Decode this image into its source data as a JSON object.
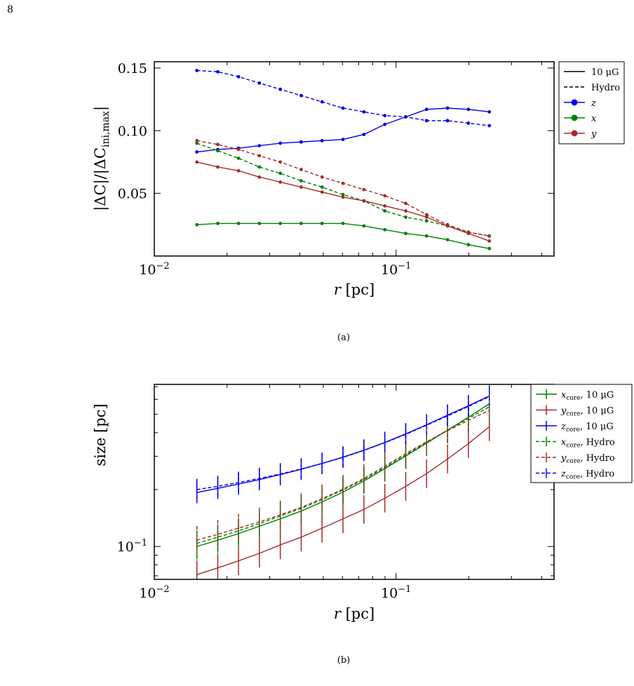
{
  "page_number": "8",
  "chart_data": [
    {
      "type": "line",
      "caption": "(a)",
      "xlabel": "r [pc]",
      "ylabel": "|ΔC|/|ΔC_ini,max|",
      "xscale": "log",
      "xlim": [
        0.01,
        0.45
      ],
      "ylim": [
        0.0,
        0.155
      ],
      "x_ticks": [
        0.01,
        0.1
      ],
      "x_tick_labels": [
        "10",
        "10"
      ],
      "x_tick_exponents": [
        "−2",
        "−1"
      ],
      "y_ticks": [
        0.05,
        0.1,
        0.15
      ],
      "y_tick_labels": [
        "0.05",
        "0.10",
        "0.15"
      ],
      "grid": false,
      "legend_position": "outside-right-top",
      "legend": [
        {
          "label": "10 μG",
          "style": "solid",
          "color": "#000000",
          "kind": "line"
        },
        {
          "label": "Hydro",
          "style": "dashed",
          "color": "#000000",
          "kind": "line"
        },
        {
          "label": "z",
          "style": "solid",
          "color": "#0000e6",
          "kind": "marker"
        },
        {
          "label": "x",
          "style": "solid",
          "color": "#008000",
          "kind": "marker"
        },
        {
          "label": "y",
          "style": "solid",
          "color": "#a52a2a",
          "kind": "marker"
        }
      ],
      "x": [
        0.015,
        0.0183,
        0.0223,
        0.0272,
        0.0332,
        0.0405,
        0.0494,
        0.0603,
        0.0736,
        0.0898,
        0.1096,
        0.1337,
        0.1632,
        0.1991,
        0.243
      ],
      "series": [
        {
          "color": "#0000e6",
          "style": "solid",
          "values": [
            0.083,
            0.085,
            0.086,
            0.088,
            0.09,
            0.091,
            0.092,
            0.093,
            0.097,
            0.105,
            0.111,
            0.117,
            0.118,
            0.117,
            0.115
          ]
        },
        {
          "color": "#0000e6",
          "style": "dashed",
          "values": [
            0.148,
            0.147,
            0.143,
            0.138,
            0.133,
            0.128,
            0.123,
            0.118,
            0.115,
            0.112,
            0.111,
            0.108,
            0.108,
            0.106,
            0.104
          ]
        },
        {
          "color": "#008000",
          "style": "solid",
          "values": [
            0.025,
            0.026,
            0.026,
            0.026,
            0.026,
            0.026,
            0.026,
            0.026,
            0.024,
            0.021,
            0.018,
            0.016,
            0.013,
            0.009,
            0.006
          ]
        },
        {
          "color": "#008000",
          "style": "dashed",
          "values": [
            0.09,
            0.084,
            0.078,
            0.071,
            0.066,
            0.06,
            0.055,
            0.049,
            0.044,
            0.036,
            0.031,
            0.028,
            0.024,
            0.019,
            0.016
          ]
        },
        {
          "color": "#a52a2a",
          "style": "solid",
          "values": [
            0.075,
            0.071,
            0.068,
            0.063,
            0.059,
            0.055,
            0.051,
            0.047,
            0.044,
            0.04,
            0.036,
            0.031,
            0.024,
            0.018,
            0.012
          ]
        },
        {
          "color": "#a52a2a",
          "style": "dashed",
          "values": [
            0.092,
            0.089,
            0.085,
            0.08,
            0.075,
            0.069,
            0.063,
            0.058,
            0.053,
            0.048,
            0.042,
            0.033,
            0.025,
            0.019,
            0.016
          ]
        }
      ]
    },
    {
      "type": "line",
      "caption": "(b)",
      "xlabel": "r [pc]",
      "ylabel": "size [pc]",
      "xscale": "log",
      "yscale": "log",
      "xlim": [
        0.01,
        0.45
      ],
      "ylim": [
        0.067,
        0.72
      ],
      "x_ticks": [
        0.01,
        0.1
      ],
      "x_tick_labels": [
        "10",
        "10"
      ],
      "x_tick_exponents": [
        "−2",
        "−1"
      ],
      "y_ticks": [
        0.1
      ],
      "y_tick_labels": [
        "10"
      ],
      "y_tick_exponents": [
        "−1"
      ],
      "grid": false,
      "legend_position": "outside-right-top",
      "legend": [
        {
          "label": "x",
          "sub": "core",
          "rest": ", 10 μG",
          "color": "#008000",
          "style": "solid"
        },
        {
          "label": "y",
          "sub": "core",
          "rest": ", 10 μG",
          "color": "#a52a2a",
          "style": "solid"
        },
        {
          "label": "z",
          "sub": "core",
          "rest": ", 10 μG",
          "color": "#0000e6",
          "style": "solid"
        },
        {
          "label": "x",
          "sub": "core",
          "rest": ", Hydro",
          "color": "#008000",
          "style": "dashed"
        },
        {
          "label": "y",
          "sub": "core",
          "rest": ", Hydro",
          "color": "#a52a2a",
          "style": "dashed"
        },
        {
          "label": "z",
          "sub": "core",
          "rest": ", Hydro",
          "color": "#0000e6",
          "style": "dashed"
        }
      ],
      "x": [
        0.015,
        0.0183,
        0.0223,
        0.0272,
        0.0332,
        0.0405,
        0.0494,
        0.0603,
        0.0736,
        0.0898,
        0.1096,
        0.1337,
        0.1632,
        0.1991,
        0.243
      ],
      "series": [
        {
          "color": "#008000",
          "style": "solid",
          "error": 0.17,
          "values": [
            0.1,
            0.108,
            0.117,
            0.128,
            0.14,
            0.154,
            0.172,
            0.194,
            0.222,
            0.258,
            0.301,
            0.352,
            0.412,
            0.483,
            0.568
          ]
        },
        {
          "color": "#a52a2a",
          "style": "solid",
          "error": 0.19,
          "values": [
            0.071,
            0.077,
            0.084,
            0.092,
            0.102,
            0.112,
            0.125,
            0.14,
            0.157,
            0.18,
            0.208,
            0.243,
            0.29,
            0.35,
            0.43
          ]
        },
        {
          "color": "#0000e6",
          "style": "solid",
          "error": 0.14,
          "values": [
            0.193,
            0.203,
            0.214,
            0.226,
            0.24,
            0.256,
            0.275,
            0.297,
            0.323,
            0.355,
            0.394,
            0.44,
            0.495,
            0.555,
            0.625
          ]
        },
        {
          "color": "#008000",
          "style": "dashed",
          "error": 0.17,
          "values": [
            0.104,
            0.112,
            0.121,
            0.132,
            0.145,
            0.159,
            0.177,
            0.199,
            0.226,
            0.262,
            0.305,
            0.355,
            0.413,
            0.475,
            0.548
          ]
        },
        {
          "color": "#a52a2a",
          "style": "dashed",
          "error": 0.19,
          "values": [
            0.108,
            0.116,
            0.125,
            0.135,
            0.147,
            0.161,
            0.179,
            0.201,
            0.229,
            0.266,
            0.31,
            0.358,
            0.41,
            0.465,
            0.525
          ]
        },
        {
          "color": "#0000e6",
          "style": "dashed",
          "error": 0.14,
          "values": [
            0.2,
            0.208,
            0.218,
            0.229,
            0.242,
            0.257,
            0.275,
            0.296,
            0.322,
            0.354,
            0.392,
            0.438,
            0.49,
            0.55,
            0.62
          ]
        }
      ]
    }
  ]
}
